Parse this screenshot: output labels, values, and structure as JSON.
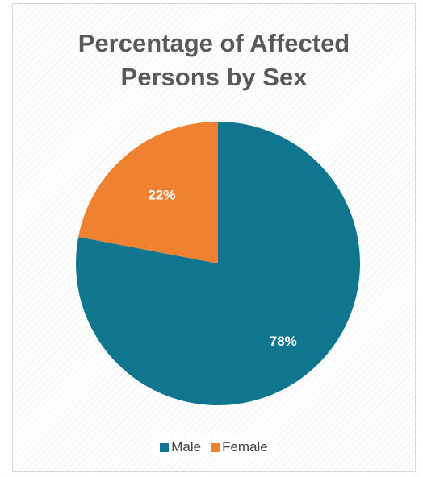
{
  "chart_data": {
    "type": "pie",
    "title_lines": [
      "Percentage of Affected",
      "Persons by Sex"
    ],
    "categories": [
      "Male",
      "Female"
    ],
    "values": [
      78,
      22
    ],
    "labels": [
      "78%",
      "22%"
    ],
    "colors": [
      "#10768f",
      "#f08130"
    ],
    "label_color": "#ffffff",
    "legend_position": "bottom",
    "start_angle_deg": 0,
    "direction": "clockwise"
  }
}
